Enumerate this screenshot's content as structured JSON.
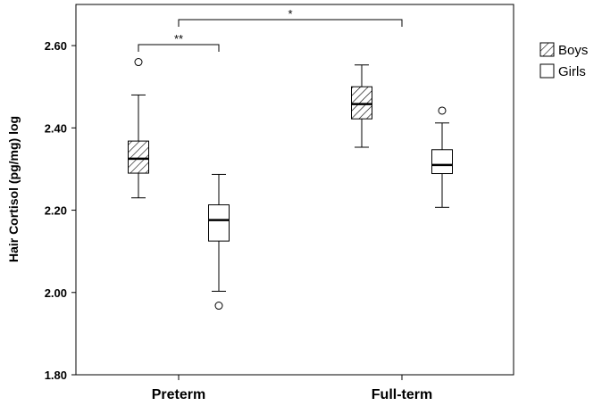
{
  "chart_data": {
    "type": "box",
    "ylabel": "Hair Cortisol (pg/mg) log",
    "xlabel": "",
    "ylim": [
      1.8,
      2.7
    ],
    "yticks": [
      "1.80",
      "2.00",
      "2.20",
      "2.40",
      "2.60"
    ],
    "categories": [
      "Preterm",
      "Full-term"
    ],
    "legend_position": "top-right",
    "series": [
      {
        "name": "Boys",
        "pattern": "hatched",
        "boxes": [
          {
            "category": "Preterm",
            "whisker_low": 2.23,
            "q1": 2.29,
            "median": 2.325,
            "q3": 2.368,
            "whisker_high": 2.48,
            "outliers": [
              2.56
            ]
          },
          {
            "category": "Full-term",
            "whisker_low": 2.353,
            "q1": 2.422,
            "median": 2.458,
            "q3": 2.5,
            "whisker_high": 2.553,
            "outliers": []
          }
        ]
      },
      {
        "name": "Girls",
        "pattern": "empty",
        "boxes": [
          {
            "category": "Preterm",
            "whisker_low": 2.003,
            "q1": 2.125,
            "median": 2.176,
            "q3": 2.213,
            "whisker_high": 2.287,
            "outliers": [
              1.968
            ]
          },
          {
            "category": "Full-term",
            "whisker_low": 2.207,
            "q1": 2.289,
            "median": 2.31,
            "q3": 2.347,
            "whisker_high": 2.412,
            "outliers": [
              2.442
            ]
          }
        ]
      }
    ],
    "significance": [
      {
        "label": "**",
        "between": [
          "Preterm Boys",
          "Preterm Girls"
        ]
      },
      {
        "label": "*",
        "between": [
          "Preterm",
          "Full-term"
        ]
      }
    ]
  }
}
